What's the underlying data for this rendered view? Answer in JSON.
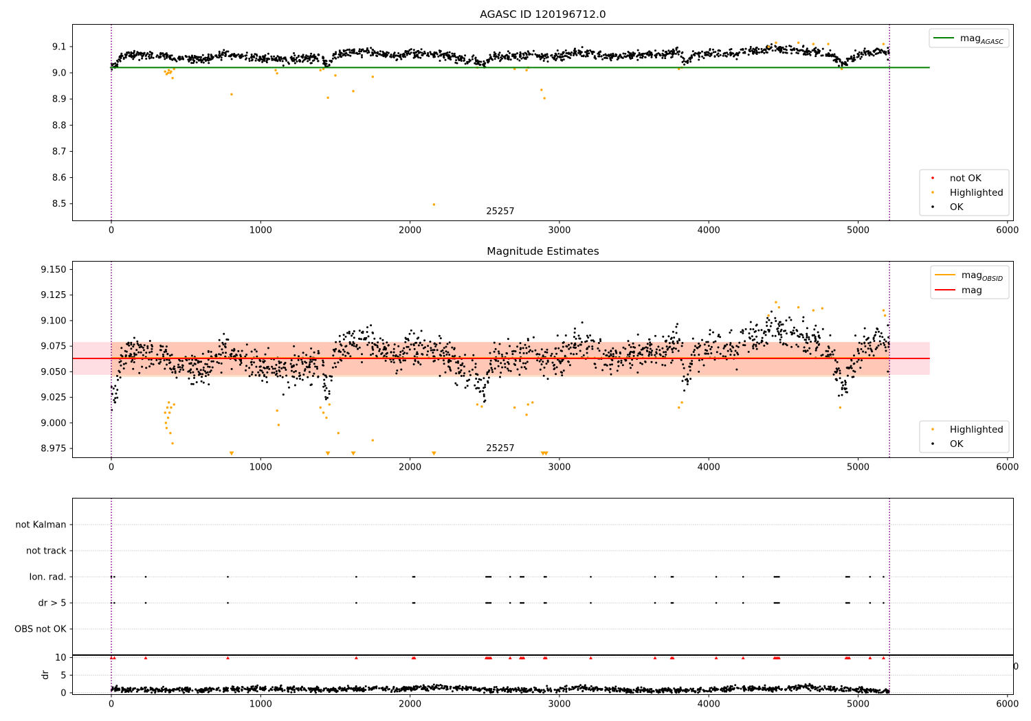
{
  "chart_data": [
    {
      "type": "scatter",
      "title": "AGASC ID 120196712.0",
      "xlabel": "",
      "ylabel": "",
      "xlim": [
        -260,
        6040
      ],
      "ylim": [
        8.435,
        9.185
      ],
      "xticks": [
        0,
        1000,
        2000,
        3000,
        4000,
        5000,
        6000
      ],
      "yticks": [
        8.5,
        8.6,
        8.7,
        8.8,
        8.9,
        9.0,
        9.1
      ],
      "ytick_labels": [
        "8.5",
        "8.6",
        "8.7",
        "8.8",
        "8.9",
        "9.0",
        "9.1"
      ],
      "annotation": "25257",
      "hlines": [
        {
          "name": "mag_AGASC",
          "y": 9.02,
          "color": "#008000",
          "x_range": [
            -10,
            5480
          ]
        }
      ],
      "vlines": [
        {
          "x": 0,
          "color": "#800080",
          "style": "dotted"
        },
        {
          "x": 5210,
          "color": "#800080",
          "style": "dotted"
        }
      ],
      "legends": [
        {
          "position": "top-right",
          "entries": [
            {
              "label": "mag",
              "sub": "AGASC",
              "kind": "line",
              "color": "#008000"
            }
          ]
        },
        {
          "position": "bottom-right",
          "entries": [
            {
              "label": "not OK",
              "kind": "marker",
              "color": "#ff0000"
            },
            {
              "label": "Highlighted",
              "kind": "marker",
              "color": "#ffa500"
            },
            {
              "label": "OK",
              "kind": "marker",
              "color": "#000000"
            }
          ]
        }
      ],
      "series": [
        {
          "name": "OK",
          "color": "#000000",
          "kind": "scatter",
          "profile": [
            [
              0,
              9.03
            ],
            [
              30,
              9.03
            ],
            [
              80,
              9.07
            ],
            [
              380,
              9.065
            ],
            [
              420,
              9.055
            ],
            [
              600,
              9.05
            ],
            [
              750,
              9.07
            ],
            [
              1000,
              9.055
            ],
            [
              1200,
              9.05
            ],
            [
              1400,
              9.06
            ],
            [
              1450,
              9.025
            ],
            [
              1500,
              9.07
            ],
            [
              1700,
              9.08
            ],
            [
              1900,
              9.065
            ],
            [
              2000,
              9.075
            ],
            [
              2200,
              9.07
            ],
            [
              2400,
              9.05
            ],
            [
              2500,
              9.03
            ],
            [
              2550,
              9.06
            ],
            [
              2800,
              9.065
            ],
            [
              3000,
              9.06
            ],
            [
              3100,
              9.08
            ],
            [
              3400,
              9.06
            ],
            [
              3600,
              9.07
            ],
            [
              3800,
              9.08
            ],
            [
              3850,
              9.035
            ],
            [
              3900,
              9.07
            ],
            [
              4200,
              9.075
            ],
            [
              4400,
              9.09
            ],
            [
              4600,
              9.085
            ],
            [
              4800,
              9.07
            ],
            [
              4900,
              9.035
            ],
            [
              5000,
              9.07
            ],
            [
              5210,
              9.08
            ]
          ],
          "noise": 0.008,
          "x_range": [
            0,
            5210
          ]
        },
        {
          "name": "Highlighted",
          "color": "#ffa500",
          "kind": "scatter",
          "points": [
            [
              360,
              9.005
            ],
            [
              370,
              8.995
            ],
            [
              380,
              9.0
            ],
            [
              385,
              9.01
            ],
            [
              395,
              9.0
            ],
            [
              400,
              9.005
            ],
            [
              410,
              8.98
            ],
            [
              420,
              9.015
            ],
            [
              805,
              8.918
            ],
            [
              1100,
              9.01
            ],
            [
              1110,
              8.998
            ],
            [
              1400,
              9.01
            ],
            [
              1420,
              9.015
            ],
            [
              1450,
              8.905
            ],
            [
              1500,
              8.99
            ],
            [
              1620,
              8.93
            ],
            [
              1750,
              8.985
            ],
            [
              2160,
              8.497
            ],
            [
              2450,
              9.02
            ],
            [
              2700,
              9.015
            ],
            [
              2780,
              9.01
            ],
            [
              2790,
              9.02
            ],
            [
              2880,
              8.935
            ],
            [
              2900,
              8.903
            ],
            [
              3800,
              9.015
            ],
            [
              3820,
              9.02
            ],
            [
              4400,
              9.1
            ],
            [
              4450,
              9.115
            ],
            [
              4600,
              9.115
            ],
            [
              4700,
              9.11
            ],
            [
              4800,
              9.11
            ],
            [
              4890,
              9.015
            ],
            [
              5170,
              9.11
            ]
          ]
        }
      ]
    },
    {
      "type": "scatter",
      "title": "Magnitude Estimates",
      "xlabel": "",
      "ylabel": "",
      "xlim": [
        -260,
        6040
      ],
      "ylim": [
        8.966,
        9.158
      ],
      "xticks": [
        0,
        1000,
        2000,
        3000,
        4000,
        5000,
        6000
      ],
      "yticks": [
        8.975,
        9.0,
        9.025,
        9.05,
        9.075,
        9.1,
        9.125,
        9.15
      ],
      "ytick_labels": [
        "8.975",
        "9.000",
        "9.025",
        "9.050",
        "9.075",
        "9.100",
        "9.125",
        "9.150"
      ],
      "annotation": "25257",
      "bands": [
        {
          "name": "mag band",
          "y_range": [
            9.047,
            9.079
          ],
          "x_range": [
            -260,
            5480
          ],
          "color": "#ffb6c1",
          "opacity": 0.45
        },
        {
          "name": "mag_OBSID band",
          "y_range": [
            9.045,
            9.079
          ],
          "x_range": [
            0,
            5210
          ],
          "color": "#ffa060",
          "opacity": 0.35
        }
      ],
      "hlines": [
        {
          "name": "mag_OBSID",
          "y": 9.0635,
          "color": "#ffa500",
          "x_range": [
            0,
            5210
          ]
        },
        {
          "name": "mag",
          "y": 9.063,
          "color": "#ff0000",
          "x_range": [
            -260,
            5480
          ]
        }
      ],
      "vlines": [
        {
          "x": 0,
          "color": "#800080",
          "style": "dotted"
        },
        {
          "x": 5210,
          "color": "#800080",
          "style": "dotted"
        }
      ],
      "legends": [
        {
          "position": "top-right",
          "entries": [
            {
              "label": "mag",
              "sub": "OBSID",
              "kind": "line",
              "color": "#ffa500"
            },
            {
              "label": "mag",
              "kind": "line",
              "color": "#ff0000"
            }
          ]
        },
        {
          "position": "bottom-right",
          "entries": [
            {
              "label": "Highlighted",
              "kind": "marker",
              "color": "#ffa500"
            },
            {
              "label": "OK",
              "kind": "marker",
              "color": "#000000"
            }
          ]
        }
      ],
      "series": [
        {
          "name": "OK",
          "color": "#000000",
          "kind": "scatter",
          "profile": [
            [
              0,
              9.03
            ],
            [
              30,
              9.03
            ],
            [
              80,
              9.07
            ],
            [
              380,
              9.065
            ],
            [
              420,
              9.055
            ],
            [
              600,
              9.05
            ],
            [
              750,
              9.07
            ],
            [
              1000,
              9.055
            ],
            [
              1200,
              9.05
            ],
            [
              1400,
              9.06
            ],
            [
              1450,
              9.025
            ],
            [
              1500,
              9.07
            ],
            [
              1700,
              9.08
            ],
            [
              1900,
              9.065
            ],
            [
              2000,
              9.075
            ],
            [
              2200,
              9.07
            ],
            [
              2400,
              9.05
            ],
            [
              2500,
              9.03
            ],
            [
              2550,
              9.06
            ],
            [
              2800,
              9.065
            ],
            [
              3000,
              9.06
            ],
            [
              3100,
              9.08
            ],
            [
              3400,
              9.06
            ],
            [
              3600,
              9.07
            ],
            [
              3800,
              9.08
            ],
            [
              3850,
              9.035
            ],
            [
              3900,
              9.07
            ],
            [
              4200,
              9.075
            ],
            [
              4400,
              9.09
            ],
            [
              4600,
              9.085
            ],
            [
              4800,
              9.07
            ],
            [
              4900,
              9.035
            ],
            [
              5000,
              9.07
            ],
            [
              5210,
              9.08
            ]
          ],
          "noise": 0.008,
          "x_range": [
            0,
            5210
          ]
        },
        {
          "name": "Highlighted",
          "color": "#ffa500",
          "kind": "scatter",
          "points": [
            [
              360,
              9.01
            ],
            [
              365,
              9.0
            ],
            [
              370,
              8.995
            ],
            [
              375,
              9.015
            ],
            [
              380,
              9.005
            ],
            [
              385,
              9.02
            ],
            [
              390,
              9.01
            ],
            [
              395,
              8.99
            ],
            [
              400,
              9.015
            ],
            [
              410,
              8.98
            ],
            [
              420,
              9.018
            ],
            [
              1110,
              9.012
            ],
            [
              1120,
              8.998
            ],
            [
              1400,
              9.015
            ],
            [
              1420,
              9.01
            ],
            [
              1440,
              9.005
            ],
            [
              1460,
              9.018
            ],
            [
              1520,
              8.99
            ],
            [
              1750,
              8.983
            ],
            [
              2450,
              9.018
            ],
            [
              2480,
              9.016
            ],
            [
              2700,
              9.015
            ],
            [
              2780,
              9.008
            ],
            [
              2790,
              9.018
            ],
            [
              2820,
              9.02
            ],
            [
              3800,
              9.015
            ],
            [
              3820,
              9.02
            ],
            [
              4400,
              9.105
            ],
            [
              4450,
              9.118
            ],
            [
              4470,
              9.113
            ],
            [
              4600,
              9.113
            ],
            [
              4700,
              9.11
            ],
            [
              4760,
              9.112
            ],
            [
              4880,
              9.015
            ],
            [
              5170,
              9.11
            ],
            [
              5180,
              9.105
            ]
          ]
        },
        {
          "name": "Highlighted (below range)",
          "color": "#ffa500",
          "kind": "triangles",
          "x": [
            805,
            1450,
            1620,
            2160,
            2890,
            2910
          ]
        }
      ]
    },
    {
      "type": "scatter",
      "title": "",
      "xlabel": "",
      "ylabel": "",
      "categories": [
        "not Kalman",
        "not track",
        "Ion. rad.",
        "dr > 5",
        "OBS not OK"
      ],
      "vlines": [
        {
          "x": 0,
          "color": "#800080",
          "style": "dotted"
        },
        {
          "x": 5210,
          "color": "#800080",
          "style": "dotted"
        }
      ],
      "series": [
        {
          "name": "Ion. rad.",
          "color": "#000000",
          "x": [
            0,
            20,
            230,
            780,
            1640,
            2020,
            2030,
            2510,
            2520,
            2530,
            2540,
            2670,
            2740,
            2750,
            2760,
            2900,
            2910,
            3210,
            3640,
            3750,
            3760,
            4050,
            4230,
            4440,
            4450,
            4460,
            4470,
            4920,
            4930,
            4940,
            5080,
            5170
          ]
        },
        {
          "name": "dr > 5",
          "color": "#000000",
          "x": [
            0,
            20,
            230,
            780,
            1640,
            2020,
            2030,
            2510,
            2520,
            2530,
            2540,
            2670,
            2740,
            2750,
            2760,
            2900,
            2910,
            3210,
            3640,
            3750,
            3760,
            4050,
            4230,
            4440,
            4450,
            4460,
            4470,
            4920,
            4930,
            4940,
            5080,
            5170
          ]
        }
      ]
    },
    {
      "type": "line",
      "title": "",
      "xlabel": "",
      "ylabel": "dr",
      "xlim": [
        -260,
        6040
      ],
      "ylim": [
        -0.5,
        10.6
      ],
      "xticks": [
        0,
        1000,
        2000,
        3000,
        4000,
        5000,
        6000
      ],
      "yticks": [
        0,
        5,
        10
      ],
      "ytick_labels": [
        "0",
        "5",
        "10"
      ],
      "right_edge_label": "0",
      "vlines": [
        {
          "x": 0,
          "color": "#800080",
          "style": "dotted"
        },
        {
          "x": 5210,
          "color": "#800080",
          "style": "dotted"
        }
      ],
      "series": [
        {
          "name": "dr",
          "color": "#000000",
          "kind": "scatter",
          "profile": [
            [
              0,
              1.0
            ],
            [
              500,
              0.8
            ],
            [
              1000,
              1.2
            ],
            [
              1500,
              0.9
            ],
            [
              2000,
              1.1
            ],
            [
              2200,
              1.6
            ],
            [
              2500,
              0.8
            ],
            [
              3000,
              0.7
            ],
            [
              3100,
              1.5
            ],
            [
              3500,
              0.6
            ],
            [
              4000,
              0.8
            ],
            [
              4200,
              1.4
            ],
            [
              4500,
              1.0
            ],
            [
              4600,
              1.6
            ],
            [
              5000,
              0.8
            ],
            [
              5210,
              0.5
            ]
          ],
          "noise": 0.35,
          "x_range": [
            0,
            5210
          ]
        },
        {
          "name": "dr clipped",
          "color": "#ff0000",
          "kind": "triangles",
          "y": 9.9,
          "x": [
            0,
            20,
            230,
            780,
            1640,
            2020,
            2030,
            2510,
            2520,
            2530,
            2540,
            2670,
            2740,
            2750,
            2760,
            2900,
            2910,
            3210,
            3640,
            3750,
            3760,
            4050,
            4230,
            4440,
            4450,
            4460,
            4470,
            4920,
            4930,
            4940,
            5080,
            5170
          ]
        }
      ]
    }
  ]
}
